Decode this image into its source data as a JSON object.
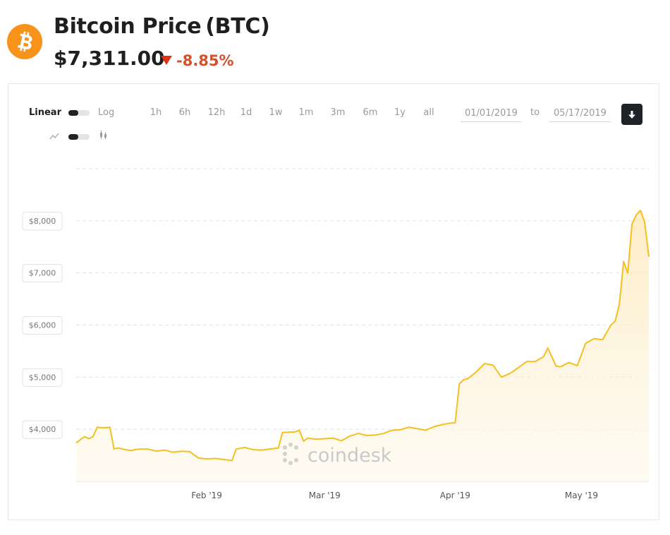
{
  "header": {
    "title": "Bitcoin Price",
    "symbol": "(BTC)",
    "price": "$7,311.00",
    "change": "-8.85%",
    "logo_icon": "bitcoin-icon",
    "brand_color": "#f7931a",
    "change_color": "#d5512b"
  },
  "controls": {
    "scale": {
      "linear_label": "Linear",
      "log_label": "Log",
      "selected": "Linear"
    },
    "chart_style": {
      "line_icon": "line-chart-icon",
      "candle_icon": "candlestick-icon",
      "selected": "line"
    },
    "ranges": [
      "1h",
      "6h",
      "12h",
      "1d",
      "1w",
      "1m",
      "3m",
      "6m",
      "1y",
      "all"
    ],
    "date_from": "01/01/2019",
    "to_label": "to",
    "date_to": "05/17/2019",
    "download_icon": "download-icon"
  },
  "watermark": "coindesk",
  "chart_data": {
    "type": "area",
    "title": "",
    "xlabel": "",
    "ylabel": "",
    "x_range": [
      "2019-01-01",
      "2019-05-17"
    ],
    "ylim": [
      3000,
      9000
    ],
    "y_ticks": [
      {
        "value": 4000,
        "label": "$4,000"
      },
      {
        "value": 5000,
        "label": "$5,000"
      },
      {
        "value": 6000,
        "label": "$6,000"
      },
      {
        "value": 7000,
        "label": "$7,000"
      },
      {
        "value": 8000,
        "label": "$8,000"
      }
    ],
    "x_ticks": [
      {
        "date": "2019-02-01",
        "label": "Feb '19"
      },
      {
        "date": "2019-03-01",
        "label": "Mar '19"
      },
      {
        "date": "2019-04-01",
        "label": "Apr '19"
      },
      {
        "date": "2019-05-01",
        "label": "May '19"
      }
    ],
    "grid": true,
    "line_color": "#f4bf1f",
    "series": [
      {
        "x": [
          "2019-01-01",
          "2019-01-03",
          "2019-01-04",
          "2019-01-05",
          "2019-01-06",
          "2019-01-07",
          "2019-01-08",
          "2019-01-09",
          "2019-01-10",
          "2019-01-11",
          "2019-01-12",
          "2019-01-14",
          "2019-01-15",
          "2019-01-16",
          "2019-01-18",
          "2019-01-20",
          "2019-01-22",
          "2019-01-24",
          "2019-01-26",
          "2019-01-28",
          "2019-01-30",
          "2019-02-01",
          "2019-02-03",
          "2019-02-05",
          "2019-02-07",
          "2019-02-08",
          "2019-02-10",
          "2019-02-12",
          "2019-02-14",
          "2019-02-16",
          "2019-02-18",
          "2019-02-19",
          "2019-02-20",
          "2019-02-22",
          "2019-02-23",
          "2019-02-24",
          "2019-02-25",
          "2019-02-27",
          "2019-03-01",
          "2019-03-03",
          "2019-03-05",
          "2019-03-07",
          "2019-03-09",
          "2019-03-11",
          "2019-03-13",
          "2019-03-15",
          "2019-03-17",
          "2019-03-19",
          "2019-03-21",
          "2019-03-23",
          "2019-03-25",
          "2019-03-27",
          "2019-03-29",
          "2019-03-31",
          "2019-04-01",
          "2019-04-02",
          "2019-04-03",
          "2019-04-04",
          "2019-04-06",
          "2019-04-08",
          "2019-04-10",
          "2019-04-12",
          "2019-04-14",
          "2019-04-16",
          "2019-04-18",
          "2019-04-20",
          "2019-04-22",
          "2019-04-23",
          "2019-04-25",
          "2019-04-26",
          "2019-04-28",
          "2019-04-30",
          "2019-05-02",
          "2019-05-04",
          "2019-05-06",
          "2019-05-08",
          "2019-05-09",
          "2019-05-10",
          "2019-05-11",
          "2019-05-12",
          "2019-05-13",
          "2019-05-14",
          "2019-05-15",
          "2019-05-16",
          "2019-05-17"
        ],
        "y": [
          3740,
          3860,
          3820,
          3860,
          4040,
          4030,
          4030,
          4040,
          3620,
          3640,
          3620,
          3590,
          3610,
          3620,
          3620,
          3580,
          3600,
          3560,
          3580,
          3570,
          3450,
          3430,
          3440,
          3420,
          3400,
          3620,
          3650,
          3610,
          3600,
          3620,
          3640,
          3940,
          3940,
          3950,
          3980,
          3770,
          3830,
          3810,
          3820,
          3830,
          3780,
          3870,
          3920,
          3880,
          3890,
          3920,
          3980,
          3990,
          4040,
          4010,
          3980,
          4050,
          4090,
          4120,
          4120,
          4870,
          4950,
          4970,
          5100,
          5260,
          5230,
          5000,
          5070,
          5180,
          5300,
          5300,
          5390,
          5560,
          5210,
          5200,
          5280,
          5220,
          5650,
          5740,
          5720,
          6000,
          6070,
          6400,
          7220,
          7000,
          7940,
          8110,
          8200,
          7980,
          7310
        ]
      }
    ]
  }
}
